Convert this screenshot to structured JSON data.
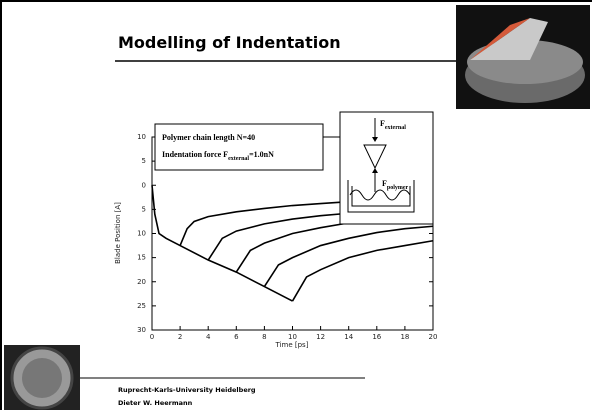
{
  "slide": {
    "title": "Modelling of Indentation",
    "footer": [
      "Ruprecht-Karls-University Heidelberg",
      "Dieter W. Heermann"
    ]
  },
  "chart_data": {
    "type": "line",
    "xlabel": "Time [ps]",
    "ylabel": "Blade Position [A]",
    "xlim": [
      0,
      20
    ],
    "xticks": [
      0,
      2,
      4,
      6,
      8,
      10,
      12,
      14,
      16,
      18,
      20
    ],
    "ylim": [
      -10,
      30
    ],
    "y_inverted": true,
    "yticks": [
      {
        "value": -10,
        "label": "10"
      },
      {
        "value": -5,
        "label": "5"
      },
      0,
      5,
      10,
      15,
      20,
      25,
      30
    ],
    "grid": false,
    "annotation": [
      [
        "Polymer chain length N=40"
      ],
      [
        "Indentation force F",
        "external",
        "=1.0nN"
      ]
    ],
    "inset_labels": [
      [
        "F",
        "external"
      ],
      [
        "F",
        "polymer"
      ]
    ],
    "series": [
      {
        "color": "#000000",
        "x": [
          0,
          0.2,
          0.5,
          1,
          2,
          4,
          6,
          8,
          10
        ],
        "values": [
          0,
          6,
          10,
          11,
          12.5,
          15.5,
          18,
          21,
          24
        ]
      },
      {
        "color": "#000000",
        "x": [
          2,
          2.5,
          3,
          4,
          6,
          8,
          10,
          12,
          14,
          16,
          18,
          20
        ],
        "values": [
          12.5,
          9,
          7.5,
          6.5,
          5.5,
          4.8,
          4.2,
          3.8,
          3.4,
          3.2,
          3,
          2.8
        ]
      },
      {
        "color": "#000000",
        "x": [
          4,
          5,
          6,
          8,
          10,
          12,
          14,
          16,
          18,
          20
        ],
        "values": [
          15.5,
          11,
          9.5,
          8,
          7,
          6.3,
          5.8,
          5.2,
          4.8,
          4.5
        ]
      },
      {
        "color": "#000000",
        "x": [
          6,
          7,
          8,
          10,
          12,
          14,
          16,
          18,
          20
        ],
        "values": [
          18,
          13.5,
          12,
          10,
          8.8,
          7.8,
          7,
          6.5,
          6
        ]
      },
      {
        "color": "#000000",
        "x": [
          8,
          9,
          10,
          12,
          14,
          16,
          18,
          20
        ],
        "values": [
          21,
          16.5,
          15,
          12.5,
          11,
          9.8,
          9,
          8.5
        ]
      },
      {
        "color": "#000000",
        "x": [
          10,
          11,
          12,
          14,
          16,
          18,
          20
        ],
        "values": [
          24,
          19,
          17.5,
          15,
          13.5,
          12.5,
          11.5
        ]
      }
    ]
  }
}
